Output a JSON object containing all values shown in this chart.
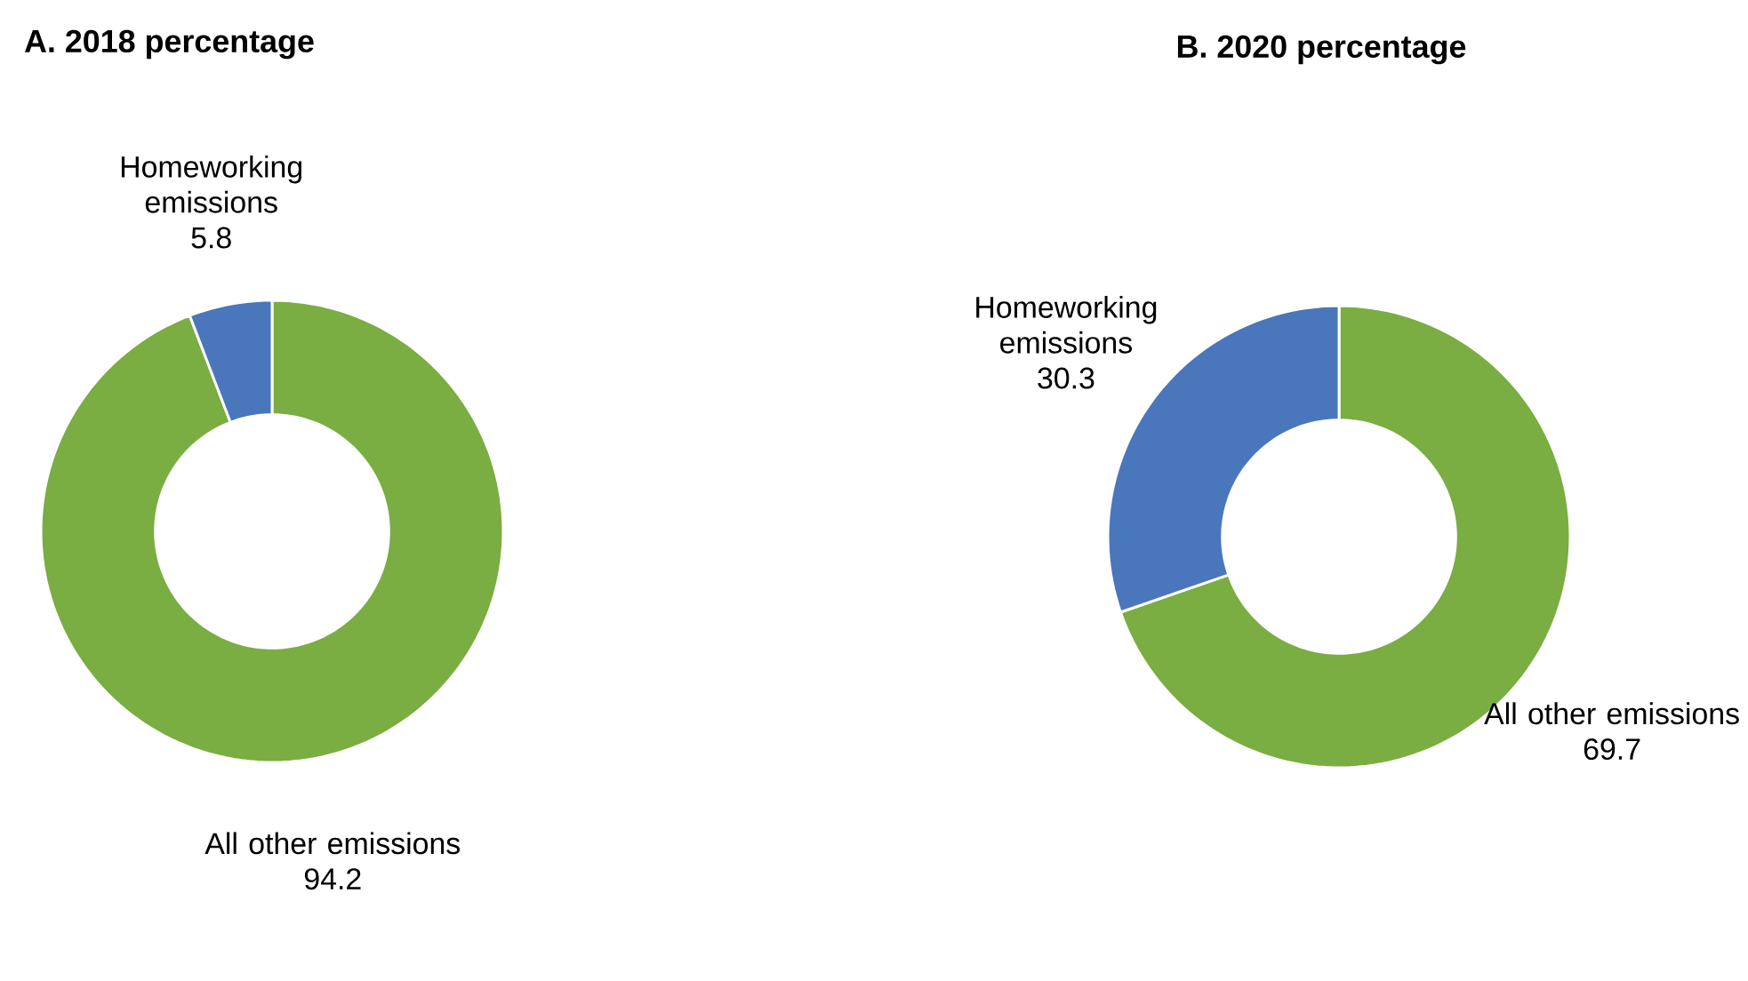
{
  "chart_data": [
    {
      "type": "donut",
      "title": "A. 2018 percentage",
      "categories": [
        "All other emissions",
        "Homeworking emissions"
      ],
      "values": [
        94.2,
        5.8
      ],
      "colors": [
        "#7aad42",
        "#4a76bc"
      ],
      "data_labels": true
    },
    {
      "type": "donut",
      "title": "B. 2020 percentage",
      "categories": [
        "All other emissions",
        "Homeworking emissions"
      ],
      "values": [
        69.7,
        30.3
      ],
      "colors": [
        "#7aad42",
        "#4a76bc"
      ],
      "data_labels": true
    }
  ]
}
